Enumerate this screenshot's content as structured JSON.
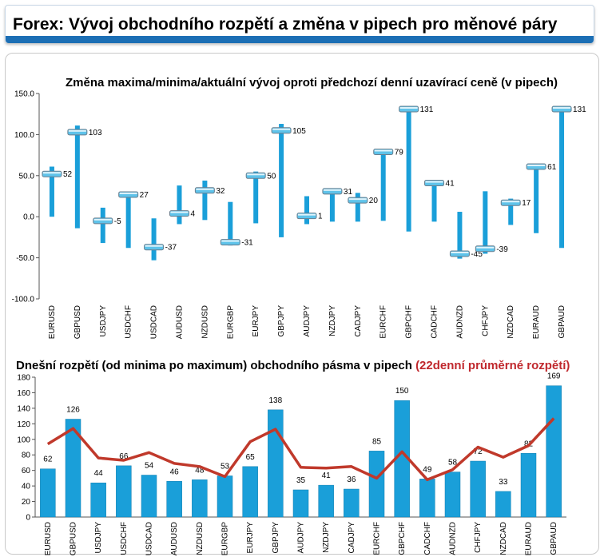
{
  "header": {
    "title": "Forex: Vývoj obchodního rozpětí a změna v pipech pro měnové páry"
  },
  "chart_data": [
    {
      "type": "range",
      "title": "Změna maxima/minima/aktuální vývoj oproti předchozí denní uzavírací ceně (v pipech)",
      "categories": [
        "EURUSD",
        "GBPUSD",
        "USDJPY",
        "USDCHF",
        "USDCAD",
        "AUDUSD",
        "NZDUSD",
        "EURGBP",
        "EURJPY",
        "GBPJPY",
        "AUDJPY",
        "NZDJPY",
        "CADJPY",
        "EURCHF",
        "GBPCHF",
        "CADCHF",
        "AUDNZD",
        "CHFJPY",
        "NZDCAD",
        "EURAUD",
        "GBPAUD"
      ],
      "high": [
        61,
        111,
        11,
        27,
        -2,
        38,
        44,
        18,
        55,
        113,
        25,
        33,
        29,
        79,
        131,
        41,
        6,
        31,
        22,
        61,
        131
      ],
      "low": [
        0,
        -14,
        -32,
        -38,
        -53,
        -9,
        -4,
        -35,
        -8,
        -25,
        -9,
        -6,
        -6,
        -5,
        -18,
        -6,
        -51,
        -45,
        -10,
        -20,
        -38
      ],
      "current": [
        52,
        103,
        -5,
        27,
        -37,
        4,
        32,
        -31,
        50,
        105,
        1,
        31,
        20,
        79,
        131,
        41,
        -45,
        -39,
        17,
        61,
        131
      ],
      "labels": [
        "52",
        "103",
        "-5",
        "27",
        "-37",
        "4",
        "32",
        "-31",
        "50",
        "105",
        "1",
        "31",
        "20",
        "79",
        "131",
        "41",
        "-45",
        "-39",
        "17",
        "61",
        "131"
      ],
      "ylim": [
        -100,
        150
      ],
      "yticks": [
        "150.0",
        "100.0",
        "50.0",
        "0.0",
        "-50.0",
        "-100.0"
      ],
      "bar_color": "#1a9fd9"
    },
    {
      "type": "bar+line",
      "title": "Dnešní rozpětí (od minima po maximum) obchodního pásma v pipech",
      "title_suffix": "(22denní průměrné rozpětí)",
      "categories": [
        "EURUSD",
        "GBPUSD",
        "USDJPY",
        "USDCHF",
        "USDCAD",
        "AUDUSD",
        "NZDUSD",
        "EURGBP",
        "EURJPY",
        "GBPJPY",
        "AUDJPY",
        "NZDJPY",
        "CADJPY",
        "EURCHF",
        "GBPCHF",
        "CADCHF",
        "AUDNZD",
        "CHFJPY",
        "NZDCAD",
        "EURAUD",
        "GBPAUD"
      ],
      "values": [
        62,
        126,
        44,
        66,
        54,
        46,
        48,
        53,
        65,
        138,
        35,
        41,
        36,
        85,
        150,
        49,
        58,
        72,
        33,
        82,
        169
      ],
      "labels": [
        "62",
        "126",
        "44",
        "66",
        "54",
        "46",
        "48",
        "53",
        "65",
        "138",
        "35",
        "41",
        "36",
        "85",
        "150",
        "49",
        "58",
        "72",
        "33",
        "82",
        "169"
      ],
      "average_22d": [
        94,
        114,
        76,
        73,
        83,
        69,
        65,
        52,
        97,
        113,
        64,
        63,
        65,
        50,
        84,
        48,
        61,
        90,
        77,
        92,
        127
      ],
      "ylim": [
        0,
        180
      ],
      "yticks": [
        "180",
        "160",
        "140",
        "120",
        "100",
        "80",
        "60",
        "40",
        "20",
        "0"
      ],
      "bar_color": "#1a9fd9",
      "line_color": "#c0392b"
    }
  ]
}
